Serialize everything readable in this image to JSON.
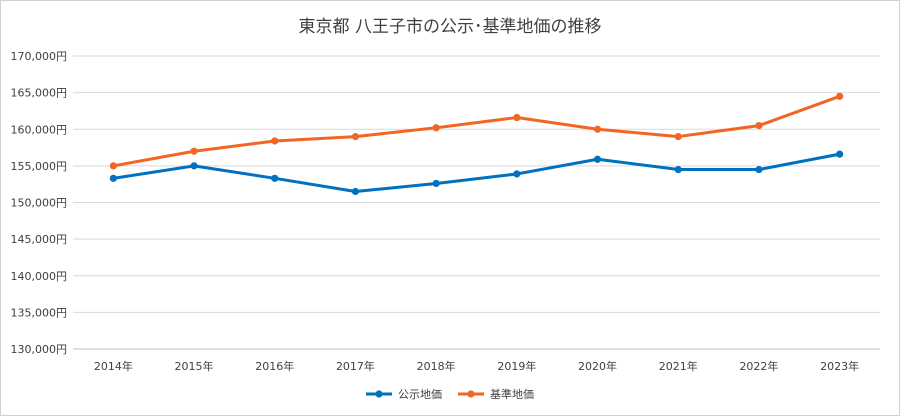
{
  "chart_data": {
    "type": "line",
    "title": "東京都 八王子市の公示･基準地価の推移",
    "categories": [
      "2014年",
      "2015年",
      "2016年",
      "2017年",
      "2018年",
      "2019年",
      "2020年",
      "2021年",
      "2022年",
      "2023年"
    ],
    "series": [
      {
        "name": "公示地価",
        "color": "#0070C0",
        "values": [
          153300,
          155000,
          153300,
          151500,
          152600,
          153900,
          155900,
          154500,
          154500,
          156600
        ]
      },
      {
        "name": "基準地価",
        "color": "#F26522",
        "values": [
          155000,
          157000,
          158400,
          159000,
          160200,
          161600,
          160000,
          159000,
          160500,
          164500
        ]
      }
    ],
    "ylim": [
      130000,
      170000
    ],
    "yticks": [
      {
        "value": 170000,
        "label": "170,000円"
      },
      {
        "value": 165000,
        "label": "165,000円"
      },
      {
        "value": 160000,
        "label": "160,000円"
      },
      {
        "value": 155000,
        "label": "155,000円"
      },
      {
        "value": 150000,
        "label": "150,000円"
      },
      {
        "value": 145000,
        "label": "145,000円"
      },
      {
        "value": 140000,
        "label": "140,000円"
      },
      {
        "value": 135000,
        "label": "135,000円"
      },
      {
        "value": 130000,
        "label": "130,000円"
      }
    ],
    "grid": true,
    "legend": "bottom"
  }
}
